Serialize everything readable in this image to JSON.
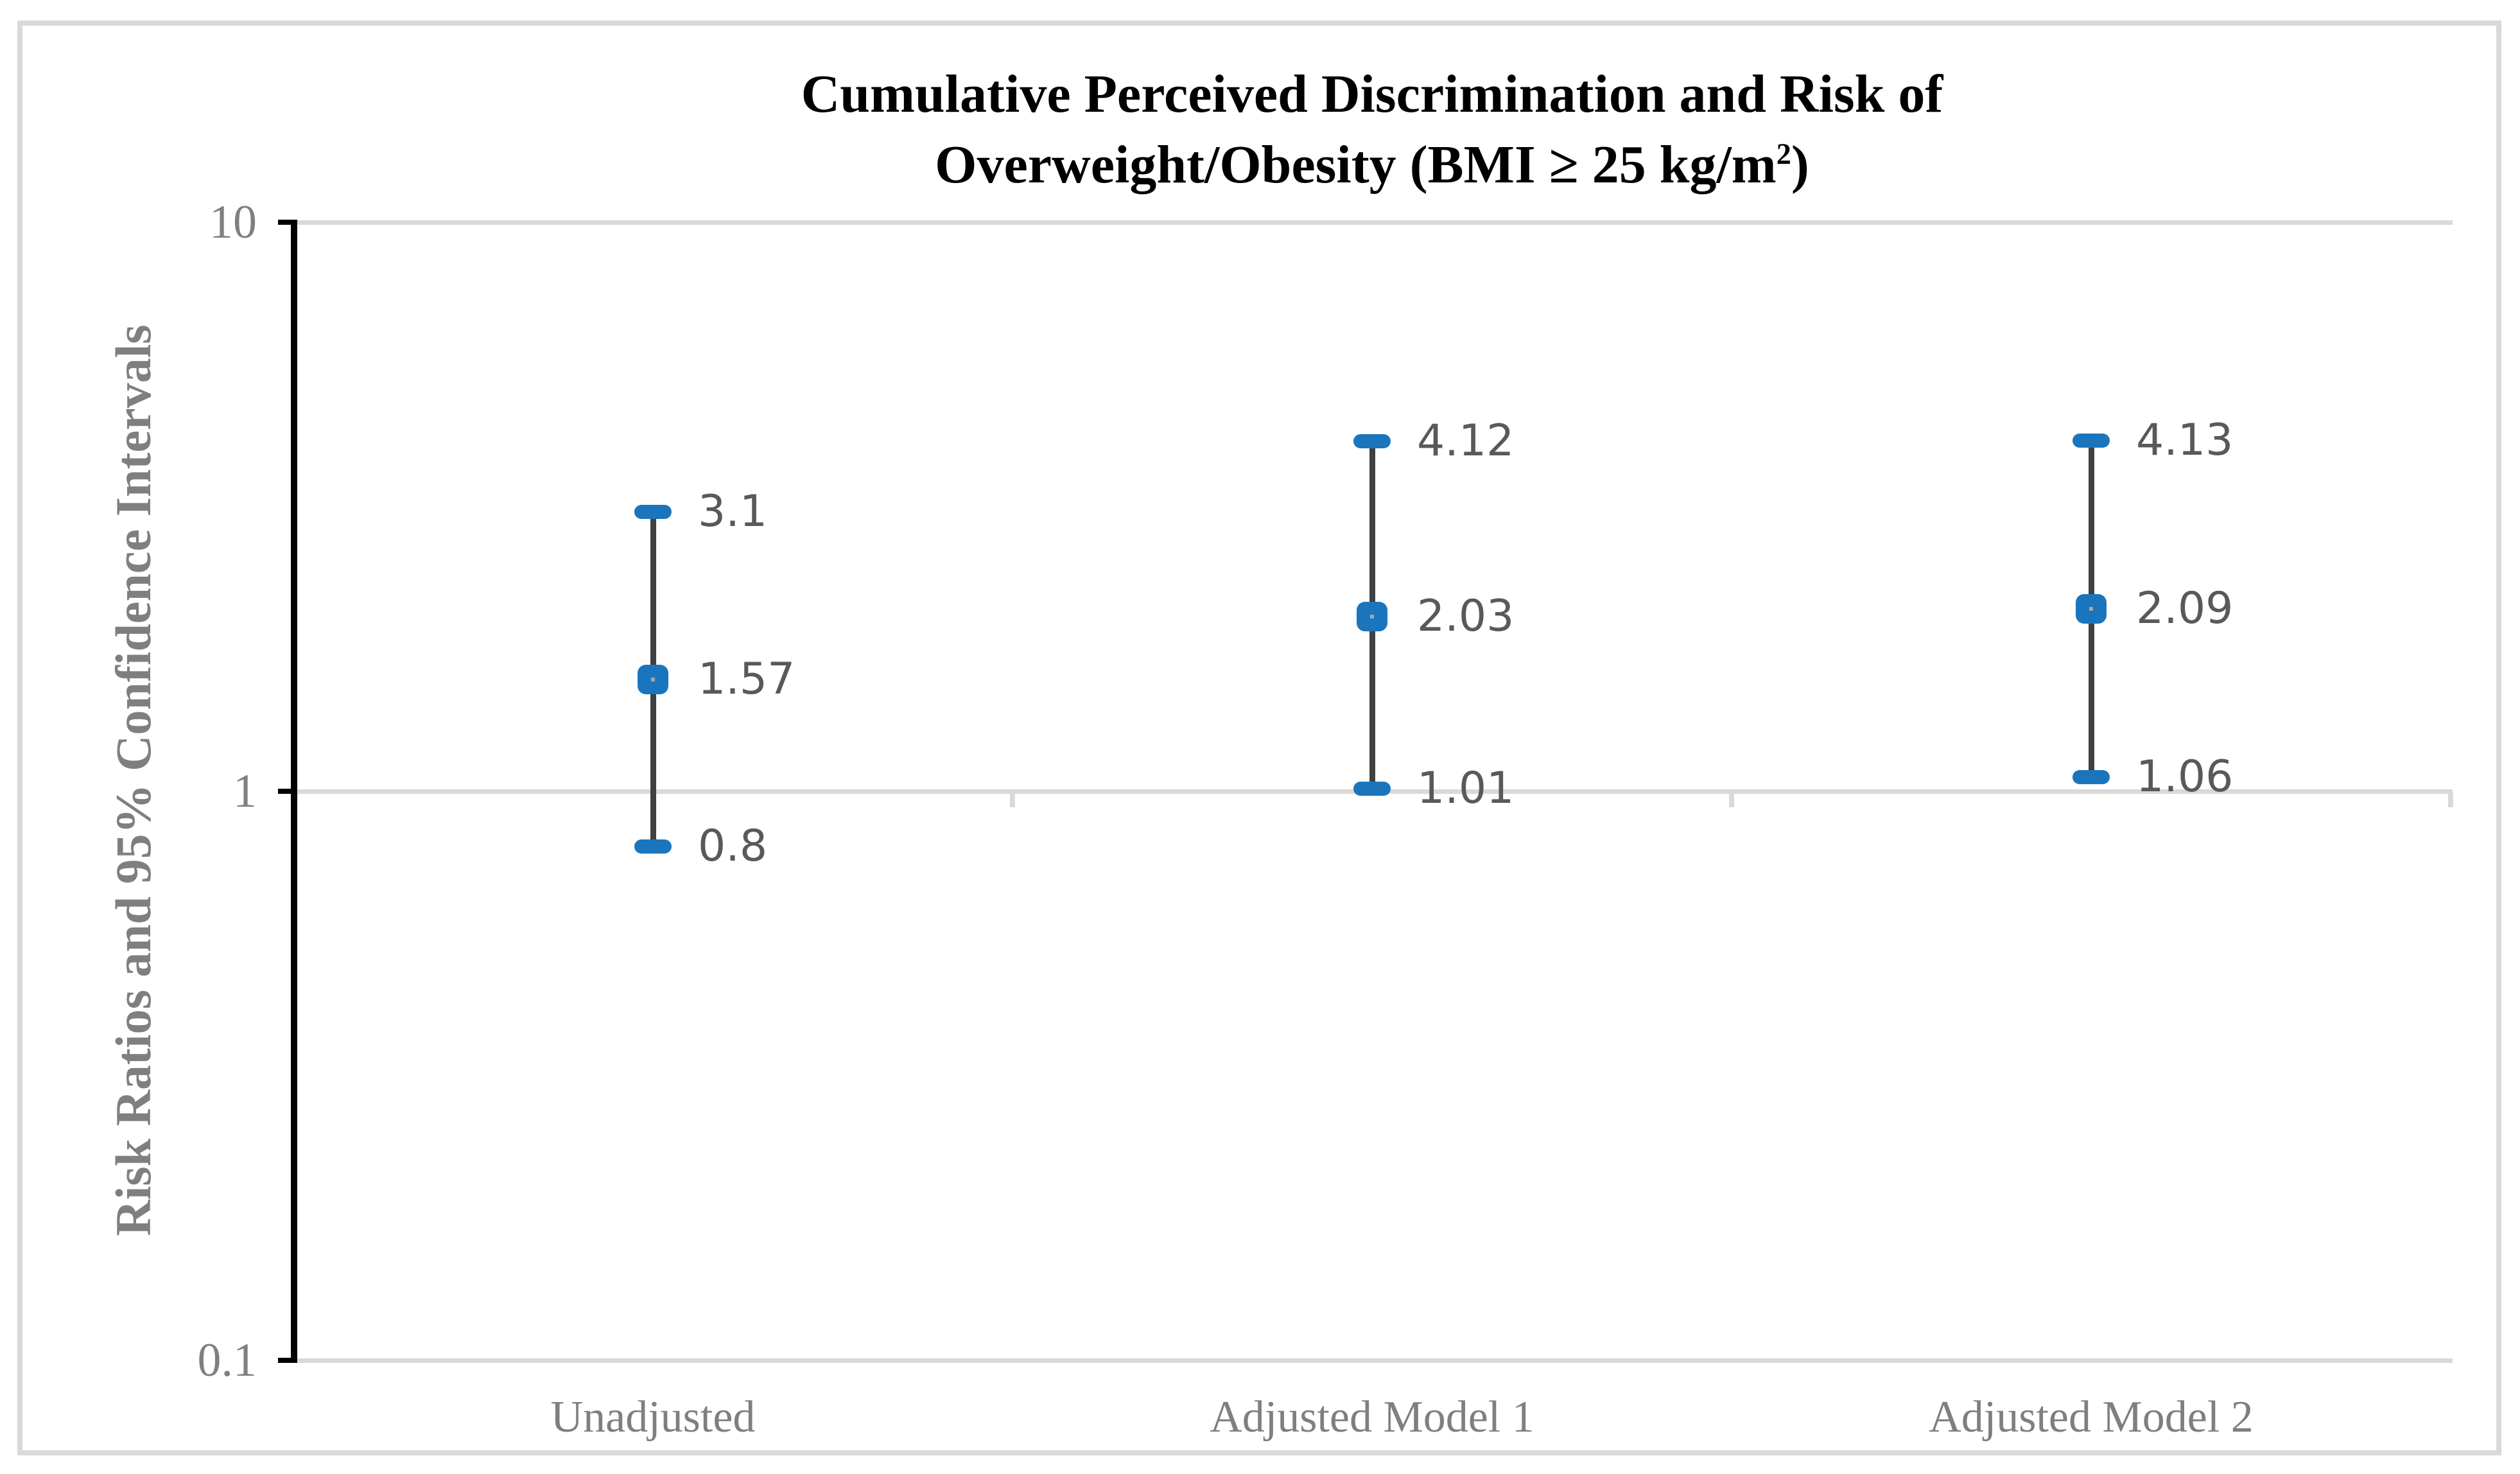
{
  "chart_data": {
    "type": "scatter",
    "subtype": "error-bar-dot-plot",
    "title_line1": "Cumulative Perceived Discrimination and Risk of",
    "title_line2_prefix": "Overweight/Obesity (BMI ≥ 25 kg/m",
    "title_line2_sup": "2",
    "title_line2_suffix": ")",
    "ylabel": "Risk Ratios and 95% Confidence Intervals",
    "yscale": "log",
    "ylim": [
      0.1,
      10
    ],
    "grid": "horizontal-on",
    "legend": "none",
    "yticks": [
      {
        "value": 10,
        "label": "10"
      },
      {
        "value": 1,
        "label": "1"
      },
      {
        "value": 0.1,
        "label": "0.1"
      }
    ],
    "categories": [
      "Unadjusted",
      "Adjusted Model 1",
      "Adjusted Model 2"
    ],
    "series": [
      {
        "category": "Unadjusted",
        "estimate": 1.57,
        "lower": 0.8,
        "upper": 3.1,
        "estimate_label": "1.57",
        "lower_label": "0.8",
        "upper_label": "3.1"
      },
      {
        "category": "Adjusted Model 1",
        "estimate": 2.03,
        "lower": 1.01,
        "upper": 4.12,
        "estimate_label": "2.03",
        "lower_label": "1.01",
        "upper_label": "4.12"
      },
      {
        "category": "Adjusted Model 2",
        "estimate": 2.09,
        "lower": 1.06,
        "upper": 4.13,
        "estimate_label": "2.09",
        "lower_label": "1.06",
        "upper_label": "4.13"
      }
    ],
    "colors": {
      "marker_blue": "#1B75BC",
      "error_line": "#404040",
      "gridline": "#D9D9D9",
      "axis_line": "#000000",
      "value_label": "#595959",
      "axis_text": "#7F7F7F",
      "title_text": "#000000",
      "frame_border": "#D9D9D9",
      "marker_center_dot": "#A6A6A6"
    }
  }
}
